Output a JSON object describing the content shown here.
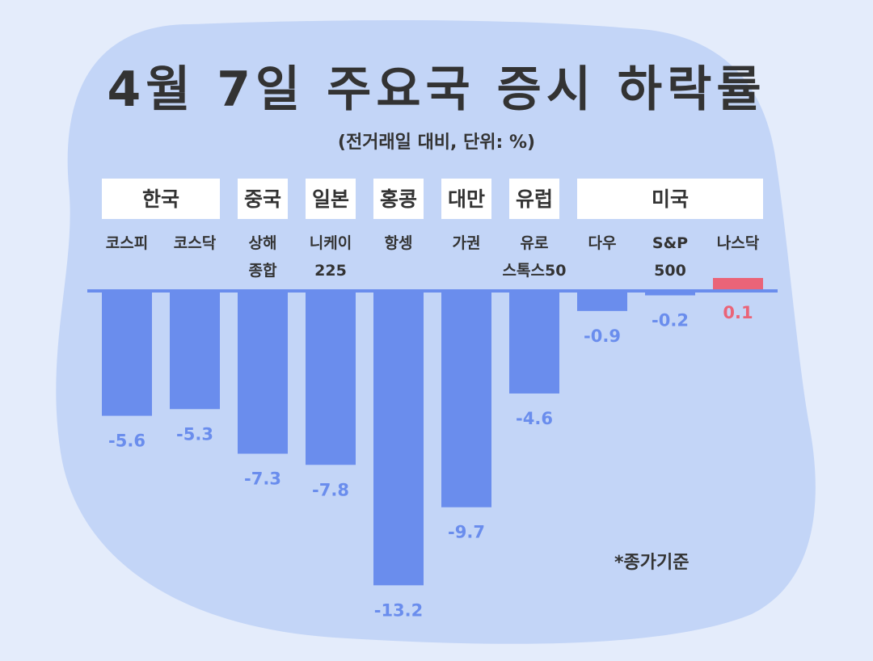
{
  "title": "4월 7일 주요국 증시 하락률",
  "subtitle": "(전거래일 대비, 단위: %)",
  "note": "*종가기준",
  "colors": {
    "background": "#e4ecfb",
    "blob": "#c3d5f7",
    "negative": "#6a8ded",
    "positive": "#ea6478",
    "label_box": "#ffffff",
    "text": "#333333"
  },
  "chart_data": {
    "type": "bar",
    "groups": [
      {
        "label": "한국",
        "members": [
          0,
          1
        ]
      },
      {
        "label": "중국",
        "members": [
          2
        ]
      },
      {
        "label": "일본",
        "members": [
          3
        ]
      },
      {
        "label": "홍콩",
        "members": [
          4
        ]
      },
      {
        "label": "대만",
        "members": [
          5
        ]
      },
      {
        "label": "유럽",
        "members": [
          6
        ]
      },
      {
        "label": "미국",
        "members": [
          7,
          8,
          9
        ]
      }
    ],
    "categories": [
      [
        "코스피"
      ],
      [
        "코스닥"
      ],
      [
        "상해",
        "종합"
      ],
      [
        "니케이",
        "225"
      ],
      [
        "항셍"
      ],
      [
        "가권"
      ],
      [
        "유로",
        "스톡스50"
      ],
      [
        "다우"
      ],
      [
        "S&P",
        "500"
      ],
      [
        "나스닥"
      ]
    ],
    "values": [
      -5.6,
      -5.3,
      -7.3,
      -7.8,
      -13.2,
      -9.7,
      -4.6,
      -0.9,
      -0.2,
      0.1
    ],
    "value_labels": [
      "-5.6",
      "-5.3",
      "-7.3",
      "-7.8",
      "-13.2",
      "-9.7",
      "-4.6",
      "-0.9",
      "-0.2",
      "0.1"
    ],
    "ylim": [
      -13.2,
      0.1
    ],
    "grid": false,
    "legend": "none"
  }
}
